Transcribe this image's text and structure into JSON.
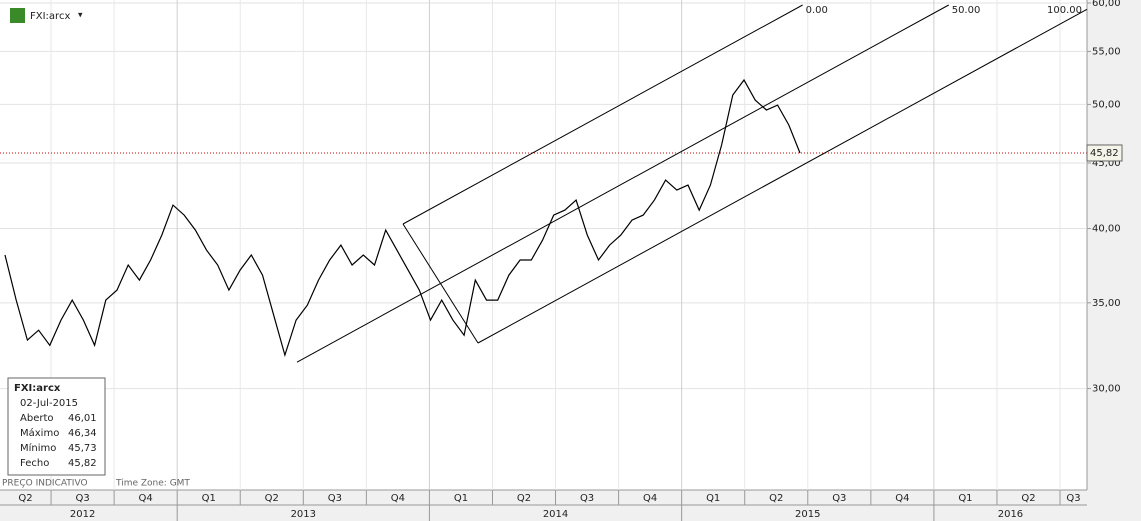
{
  "header": {
    "symbol": "FXI:arcx",
    "menu": "▾"
  },
  "chart_data": {
    "type": "line",
    "color": "#000000",
    "log_scale": true,
    "grid": true,
    "values": [
      38.14,
      35.17,
      32.73,
      33.32,
      32.43,
      33.93,
      35.17,
      33.93,
      32.43,
      35.17,
      35.81,
      37.46,
      36.46,
      37.8,
      39.53,
      41.72,
      40.98,
      39.89,
      38.48,
      37.46,
      35.81,
      37.12,
      38.14,
      36.79,
      34.23,
      31.86,
      33.93,
      34.85,
      36.46,
      37.8,
      38.83,
      37.46,
      38.14,
      37.46,
      39.89,
      38.48,
      37.12,
      35.81,
      33.93,
      35.17,
      33.93,
      33.02,
      36.46,
      35.17,
      35.17,
      36.79,
      37.8,
      37.8,
      39.17,
      40.98,
      41.35,
      42.1,
      39.53,
      37.8,
      38.83,
      39.53,
      40.61,
      40.98,
      42.1,
      43.64,
      42.86,
      43.25,
      41.35,
      43.25,
      46.48,
      50.85,
      52.24,
      50.39,
      49.5,
      49.94,
      48.18,
      45.82
    ],
    "ylim": [
      25,
      60
    ],
    "yticks": [
      {
        "value": 30,
        "label": "30,00"
      },
      {
        "value": 35,
        "label": "35,00"
      },
      {
        "value": 40,
        "label": "40,00"
      },
      {
        "value": 45,
        "label": "45,00"
      },
      {
        "value": 50,
        "label": "50,00"
      },
      {
        "value": 55,
        "label": "55,00"
      },
      {
        "value": 60,
        "label": "60,00"
      }
    ],
    "quarters": [
      "Q2",
      "Q3",
      "Q4",
      "Q1",
      "Q2",
      "Q3",
      "Q4",
      "Q1",
      "Q2",
      "Q3",
      "Q4",
      "Q1",
      "Q2",
      "Q3",
      "Q4",
      "Q1",
      "Q2",
      "Q3"
    ],
    "years": [
      "2012",
      "2013",
      "2014",
      "2015",
      "2016"
    ],
    "last_price": {
      "value": 45.82,
      "label": "45,82"
    },
    "fork_levels": [
      {
        "value": 0,
        "label": "0.00"
      },
      {
        "value": 50,
        "label": "50.00"
      },
      {
        "value": 100,
        "label": "100.00"
      }
    ]
  },
  "info": {
    "title": "FXI:arcx",
    "date": "02-Jul-2015",
    "rows": [
      {
        "label": "Aberto",
        "value": "46,01"
      },
      {
        "label": "Máximo",
        "value": "46,34"
      },
      {
        "label": "Mínimo",
        "value": "45,73"
      },
      {
        "label": "Fecho",
        "value": "45,82"
      }
    ]
  },
  "footer": {
    "note": "PREÇO INDICATIVO",
    "timezone": "Time Zone: GMT"
  }
}
